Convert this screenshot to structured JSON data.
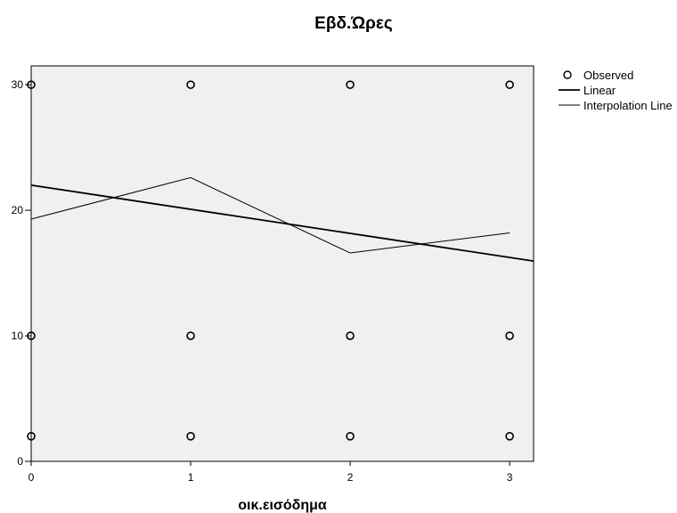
{
  "chart_data": {
    "type": "scatter",
    "title": "Εβδ.Ώρες",
    "xlabel": "οικ.εισόδημα",
    "ylabel": "",
    "xlim": [
      0,
      3.15
    ],
    "ylim": [
      0,
      31.5
    ],
    "xticks": [
      "0",
      "1",
      "2",
      "3"
    ],
    "yticks": [
      "0",
      "10",
      "20",
      "30"
    ],
    "grid": false,
    "legend_position": "top-right",
    "colors": {
      "plot_bg": "#f0f0f0",
      "axis": "#000000",
      "marker": "#000000",
      "line": "#000000"
    },
    "legend": [
      {
        "label": "Observed",
        "kind": "marker"
      },
      {
        "label": "Linear",
        "kind": "thick-line"
      },
      {
        "label": "Interpolation Line",
        "kind": "thin-line"
      }
    ],
    "observed": [
      {
        "x": 0,
        "y": 30
      },
      {
        "x": 0,
        "y": 10
      },
      {
        "x": 0,
        "y": 2
      },
      {
        "x": 1,
        "y": 30
      },
      {
        "x": 1,
        "y": 10
      },
      {
        "x": 1,
        "y": 2
      },
      {
        "x": 2,
        "y": 30
      },
      {
        "x": 2,
        "y": 10
      },
      {
        "x": 2,
        "y": 2
      },
      {
        "x": 3,
        "y": 30
      },
      {
        "x": 3,
        "y": 10
      },
      {
        "x": 3,
        "y": 2
      }
    ],
    "linear": {
      "intercept": 22.0,
      "slope": -1.92
    },
    "interpolation": [
      {
        "x": 0,
        "y": 19.3
      },
      {
        "x": 1,
        "y": 22.6
      },
      {
        "x": 2,
        "y": 16.6
      },
      {
        "x": 3,
        "y": 18.2
      }
    ]
  }
}
